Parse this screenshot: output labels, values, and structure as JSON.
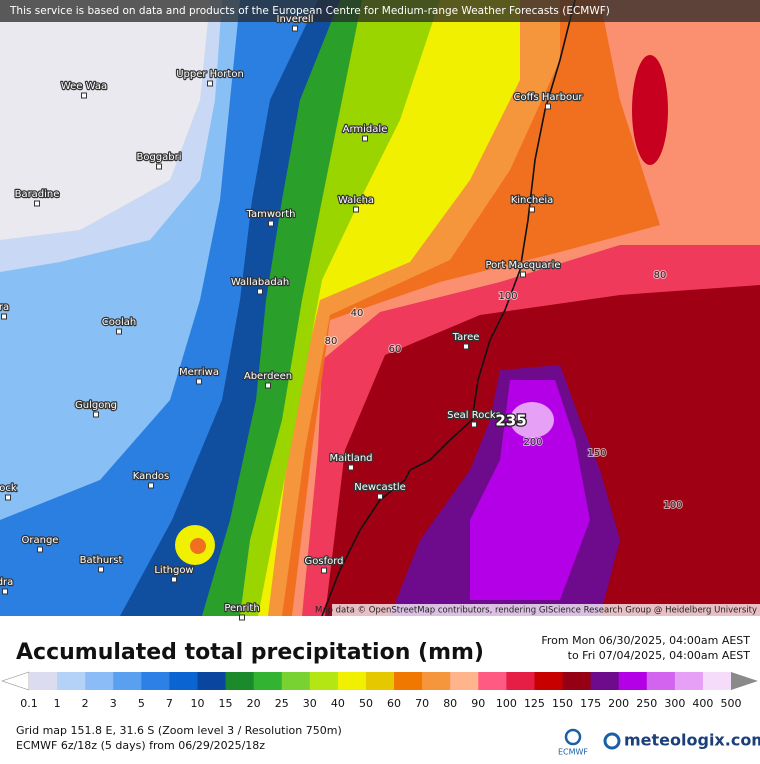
{
  "attribution": "This service is based on data and products of the European Centre for Medium-range Weather Forecasts (ECMWF)",
  "places": [
    "Inverell",
    "Upper Horton",
    "Wee Waa",
    "Boggabri",
    "Armidale",
    "Coffs Harbour",
    "Baradine",
    "Walcha",
    "Kincheia",
    "Tamworth",
    "Port Macquarie",
    "Wallabadah",
    "ra",
    "Coolah",
    "Taree",
    "Merriwa",
    "Aberdeen",
    "Gulgong",
    "Seal Rocks",
    "Maitland",
    "Kandos",
    "ock",
    "Newcastle",
    "Orange",
    "Bathurst",
    "Gosford",
    "Lithgow",
    "dra",
    "Penrith"
  ],
  "contour_labels": [
    40,
    60,
    80,
    100,
    80,
    200,
    150,
    100
  ],
  "peak_label": 235,
  "map_credit": "Map data © OpenStreetMap contributors, rendering GIScience Research Group @ Heidelberg University",
  "title": "Accumulated total precipitation (mm)",
  "period_from": "From Mon 06/30/2025, 04:00am AEST",
  "period_to": "to Fri 07/04/2025, 04:00am AEST",
  "legend": {
    "levels": [
      0.1,
      1,
      2,
      3,
      5,
      7,
      10,
      15,
      20,
      25,
      30,
      40,
      50,
      60,
      70,
      80,
      90,
      100,
      125,
      150,
      175,
      200,
      250,
      300,
      400,
      500
    ],
    "colors": [
      "#dcdcf0",
      "#b4d2f8",
      "#8cbcf8",
      "#5aa0f0",
      "#2d80e6",
      "#0a64d2",
      "#0a46a0",
      "#1a8a2a",
      "#32b432",
      "#78d232",
      "#b4e614",
      "#f0f000",
      "#e6c800",
      "#f07800",
      "#f5963c",
      "#ffb48c",
      "#ff5a82",
      "#e61e46",
      "#c80000",
      "#960014",
      "#6e0a8c",
      "#b400e6",
      "#d264f0",
      "#e6a0f5",
      "#f5dcfa"
    ]
  },
  "grid_info": "Grid map 151.8 E, 31.6 S (Zoom level 3 / Resolution 750m)",
  "model_info": "ECMWF 6z/18z (5 days) from  06/29/2025/18z",
  "logo_ecmwf": "ECMWF",
  "logo_meteologix": "meteologix.com"
}
